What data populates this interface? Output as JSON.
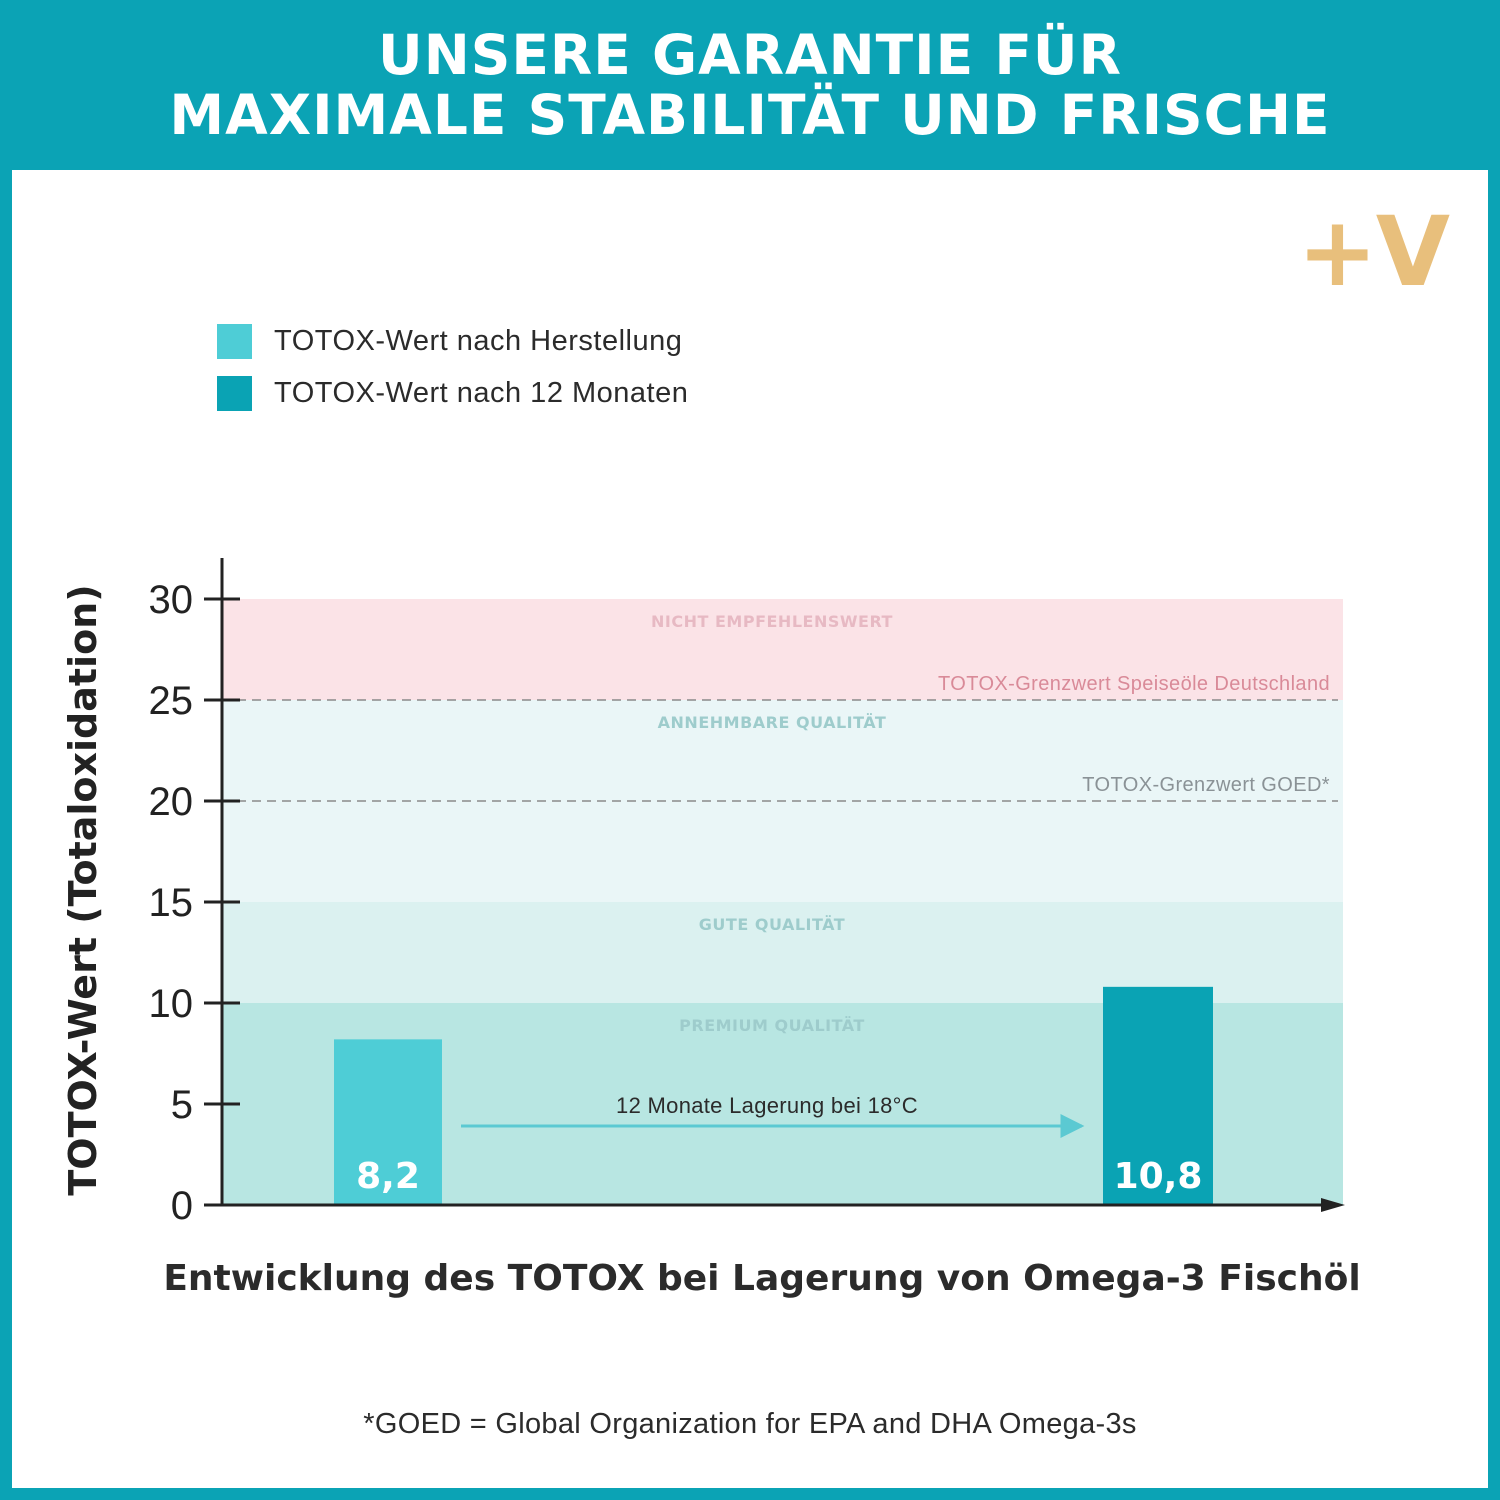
{
  "header": {
    "line1": "UNSERE GARANTIE FÜR",
    "line2": "MAXIMALE STABILITÄT UND FRISCHE"
  },
  "logo": {
    "text": "+V",
    "color": "#e8bf7c"
  },
  "footnote": "*GOED = Global Organization for EPA and DHA Omega-3s",
  "colors": {
    "frame": "#0ba3b5",
    "series_production": "#4ecdd6",
    "series_12_months": "#0aa3b4"
  },
  "chart_data": {
    "type": "bar",
    "title": "Entwicklung des TOTOX bei Lagerung von Omega-3 Fischöl",
    "ylabel": "TOTOX-Wert (Totaloxidation)",
    "xlabel": "",
    "ylim": [
      0,
      30
    ],
    "yticks": [
      0,
      5,
      10,
      15,
      20,
      25,
      30
    ],
    "grid": false,
    "legend_position": "top-left",
    "series": [
      {
        "name": "TOTOX-Wert nach Herstellung",
        "value": 8.2,
        "value_label": "8,2",
        "color": "#4ecdd6"
      },
      {
        "name": "TOTOX-Wert nach 12 Monaten",
        "value": 10.8,
        "value_label": "10,8",
        "color": "#0aa3b4"
      }
    ],
    "zones": [
      {
        "label": "PREMIUM QUALITÄT",
        "from": 0,
        "to": 10,
        "color": "#b8e6e2"
      },
      {
        "label": "GUTE QUALITÄT",
        "from": 10,
        "to": 15,
        "color": "#dbf1f0"
      },
      {
        "label": "ANNEHMBARE QUALITÄT",
        "from": 15,
        "to": 25,
        "color": "#eaf6f7"
      },
      {
        "label": "NICHT EMPFEHLENSWERT",
        "from": 25,
        "to": 30,
        "color": "#fbe3e7"
      }
    ],
    "reference_lines": [
      {
        "label": "TOTOX-Grenzwert Speiseöle Deutschland",
        "value": 25,
        "color": "#d98a98"
      },
      {
        "label": "TOTOX-Grenzwert GOED*",
        "value": 20,
        "color": "#8a9296"
      }
    ],
    "annotation": {
      "text": "12 Monate Lagerung bei 18°C"
    }
  }
}
